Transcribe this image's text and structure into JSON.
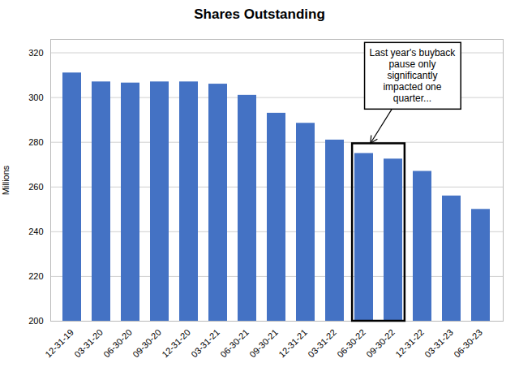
{
  "chart_data": {
    "type": "bar",
    "title": "Shares Outstanding",
    "ylabel": "Millions",
    "categories": [
      "12-31-19",
      "03-31-20",
      "06-30-20",
      "09-30-20",
      "12-31-20",
      "03-31-21",
      "06-30-21",
      "09-30-21",
      "12-31-21",
      "03-31-22",
      "06-30-22",
      "09-30-22",
      "12-31-22",
      "03-31-23",
      "06-30-23"
    ],
    "values": [
      311,
      307,
      306.5,
      307,
      307,
      306,
      301,
      293,
      288.5,
      281,
      275,
      272.5,
      267,
      256,
      250
    ],
    "color": "#4472C4",
    "ylim": [
      200,
      326
    ],
    "yticks": [
      200,
      220,
      240,
      260,
      280,
      300,
      320
    ],
    "grid": true,
    "annotations": [
      {
        "text": "Last year's buyback\npause only\nsignificantly\nimpacted one\nquarter...",
        "categories": [
          "06-30-22",
          "09-30-22"
        ]
      }
    ]
  }
}
